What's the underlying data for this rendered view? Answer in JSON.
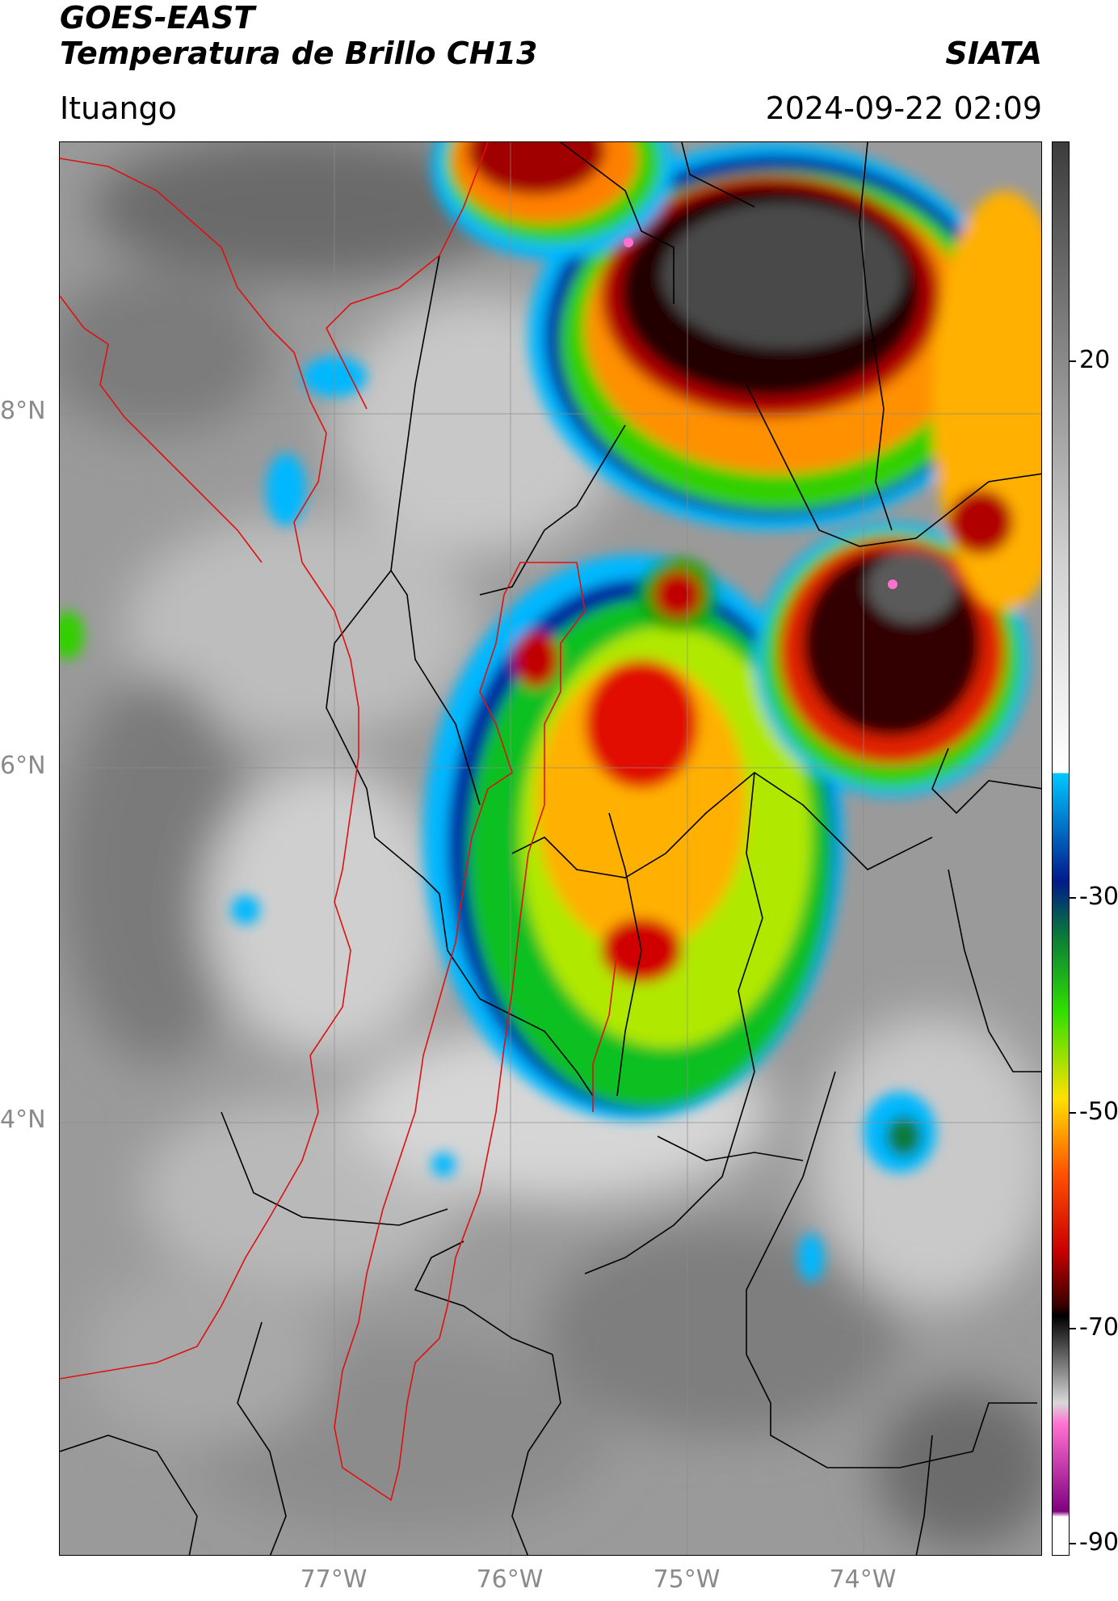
{
  "header": {
    "satellite": "GOES-EAST",
    "product": "Temperatura de Brillo CH13",
    "brand": "SIATA",
    "location": "Ituango",
    "timestamp": "2024-09-22 02:09"
  },
  "axes": {
    "lat_ticks": [
      "8°N",
      "6°N",
      "4°N"
    ],
    "lon_ticks": [
      "77°W",
      "76°W",
      "75°W",
      "74°W"
    ]
  },
  "colorbar": {
    "ticks": [
      "20",
      "-30",
      "-50",
      "-70",
      "-90"
    ],
    "stops": [
      {
        "v": 38,
        "c": "#3c3c3c"
      },
      {
        "v": 0,
        "c": "#cfcfcf"
      },
      {
        "v": -20,
        "c": "#ffffff"
      },
      {
        "v": -20.1,
        "c": "#00c8ff"
      },
      {
        "v": -30,
        "c": "#001a8a"
      },
      {
        "v": -35,
        "c": "#0a7a3a"
      },
      {
        "v": -42,
        "c": "#30e000"
      },
      {
        "v": -50,
        "c": "#ffe000"
      },
      {
        "v": -57,
        "c": "#ff5000"
      },
      {
        "v": -64,
        "c": "#c80000"
      },
      {
        "v": -69,
        "c": "#3a0000"
      },
      {
        "v": -70,
        "c": "#000000"
      },
      {
        "v": -78,
        "c": "#d8d8d8"
      },
      {
        "v": -80,
        "c": "#ff70d0"
      },
      {
        "v": -88,
        "c": "#800080"
      },
      {
        "v": -88.5,
        "c": "#ffffff"
      },
      {
        "v": -92,
        "c": "#ffffff"
      }
    ]
  }
}
